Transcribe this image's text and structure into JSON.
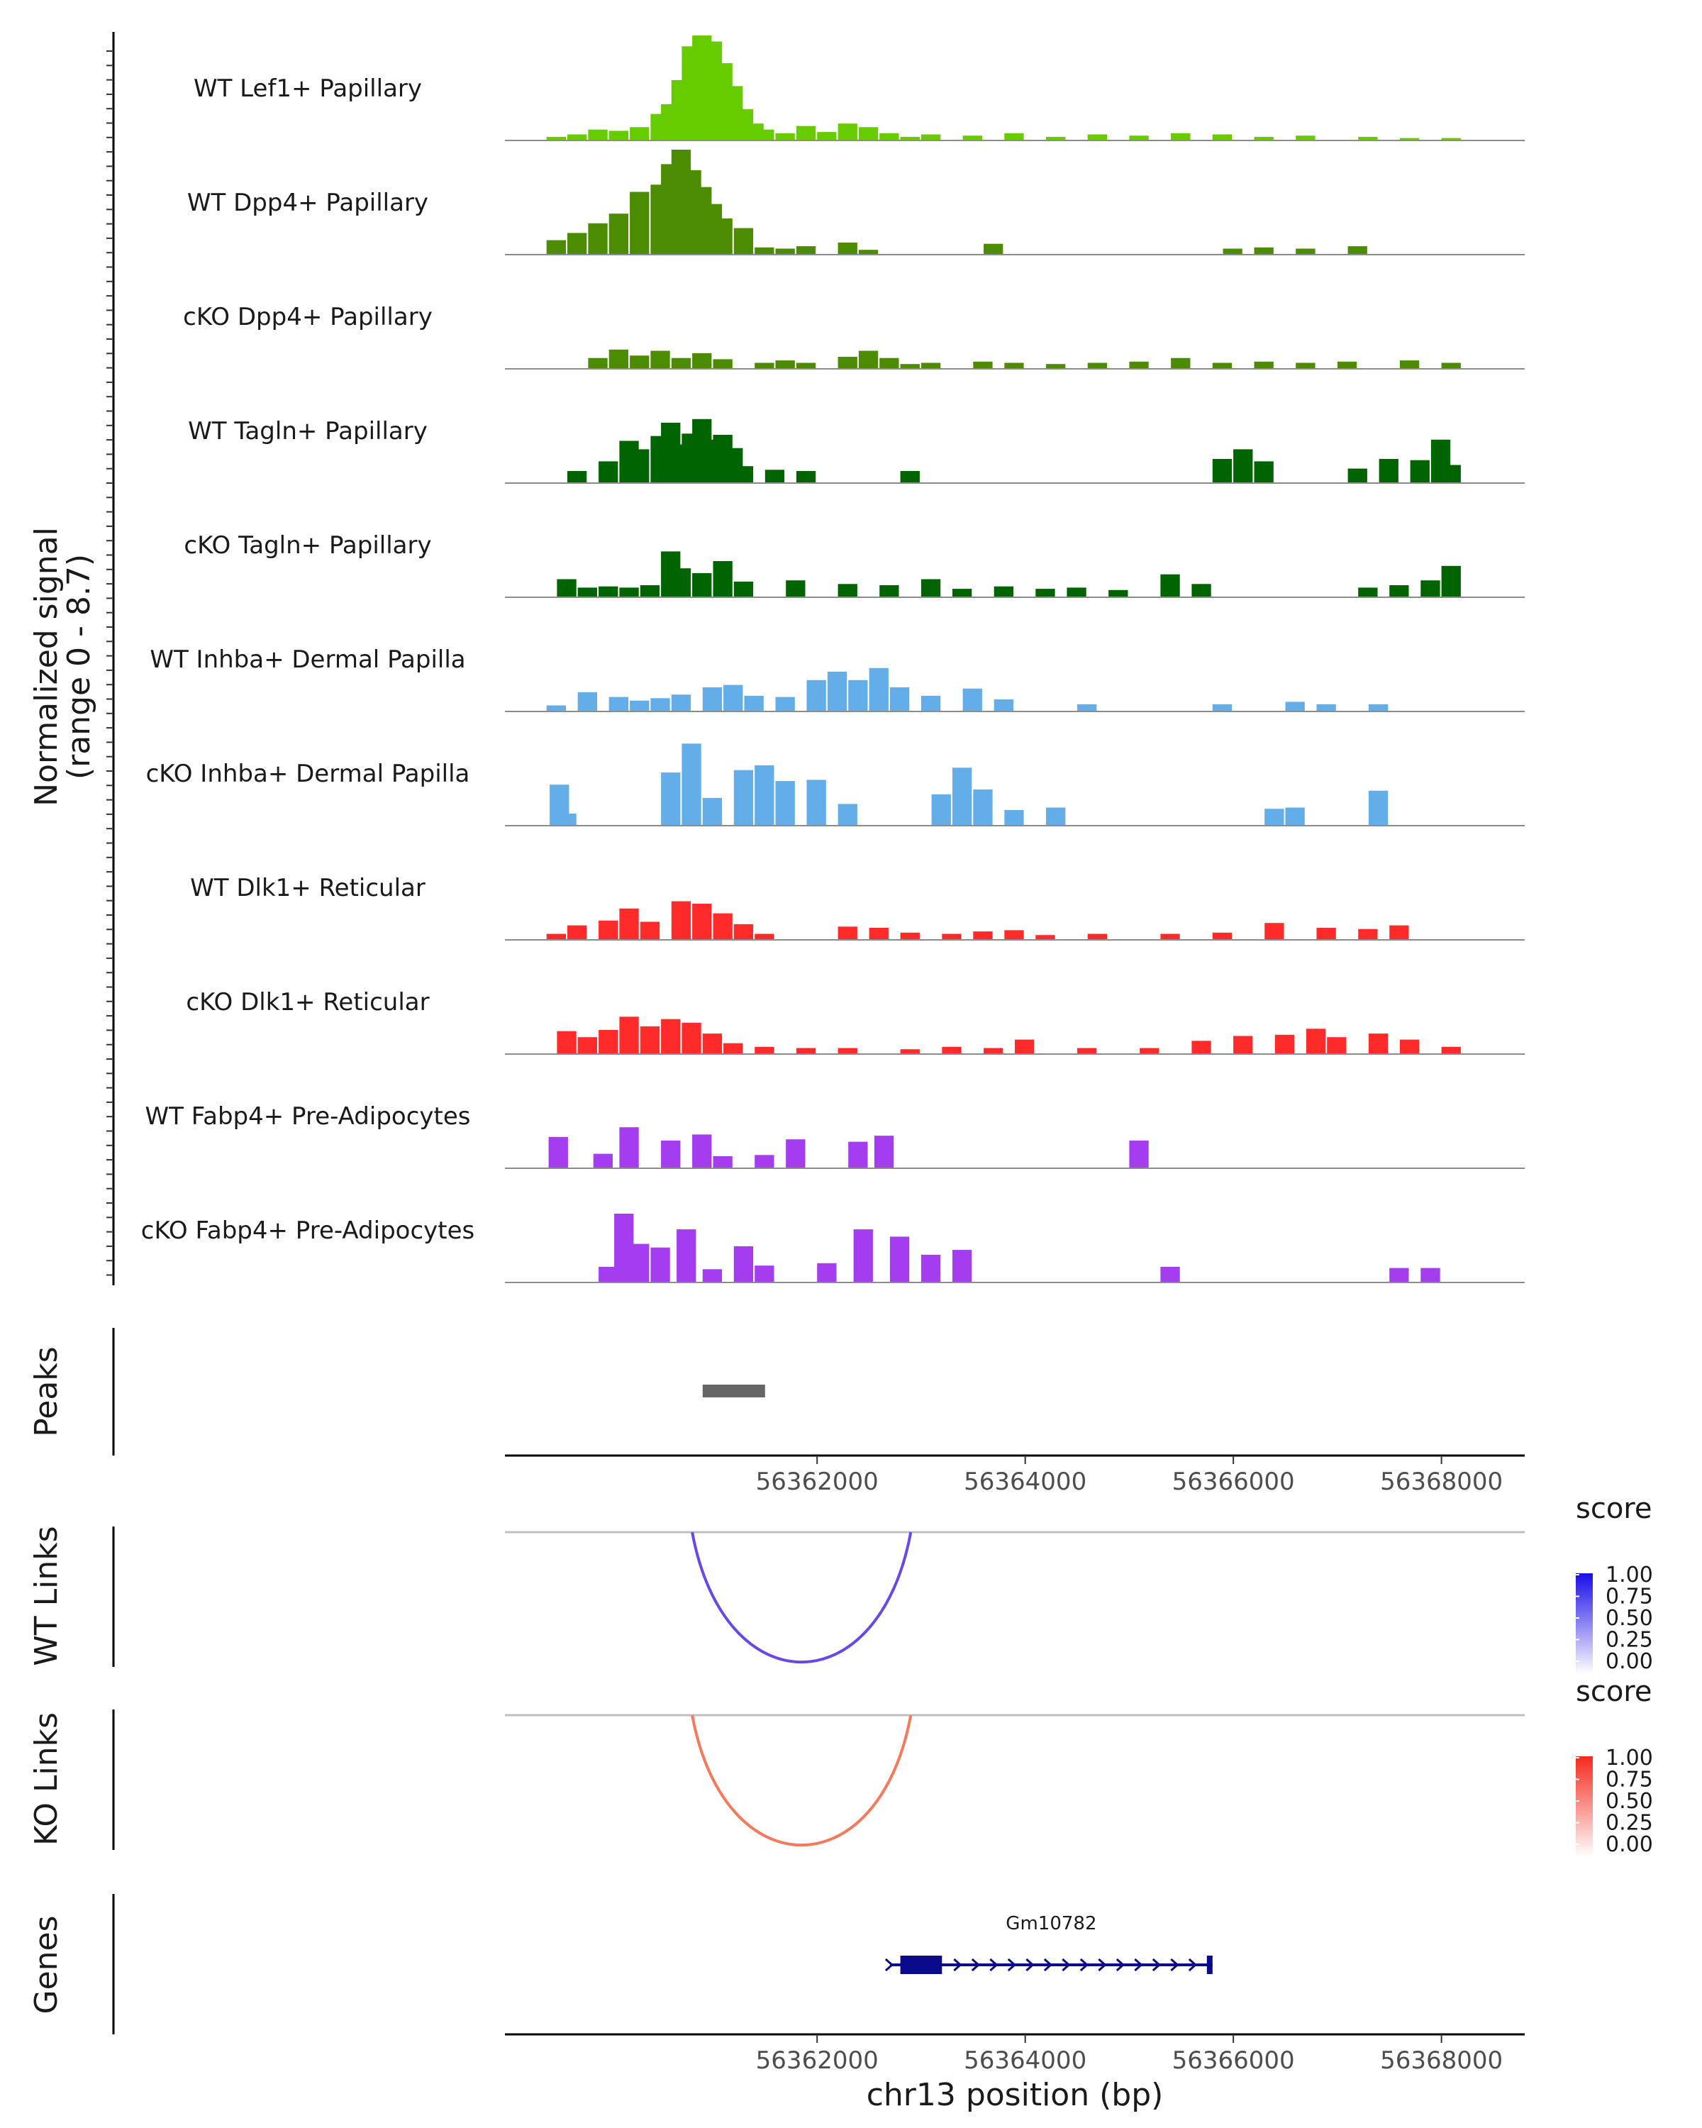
{
  "chart_data": {
    "type": "area",
    "title": "",
    "chromosome": "chr13",
    "xlabel": "chr13 position (bp)",
    "xlim": [
      56359000,
      56368800
    ],
    "xticks": [
      56362000,
      56364000,
      56366000,
      56368000
    ],
    "ylabel": "Normalized signal",
    "ylabel_range": "(range 0 - 8.7)",
    "ylim": [
      0,
      8.7
    ],
    "coverage_tracks": [
      {
        "name": "WT Lef1+ Papillary",
        "color": "#66CC00",
        "bins": [
          [
            56359400,
            0.3
          ],
          [
            56359600,
            0.5
          ],
          [
            56359800,
            0.9
          ],
          [
            56360000,
            0.8
          ],
          [
            56360200,
            1.1
          ],
          [
            56360400,
            2.2
          ],
          [
            56360500,
            3.0
          ],
          [
            56360600,
            5.0
          ],
          [
            56360700,
            7.8
          ],
          [
            56360800,
            8.7
          ],
          [
            56360900,
            8.2
          ],
          [
            56361000,
            6.4
          ],
          [
            56361100,
            4.5
          ],
          [
            56361200,
            2.6
          ],
          [
            56361300,
            1.4
          ],
          [
            56361400,
            0.9
          ],
          [
            56361600,
            0.6
          ],
          [
            56361800,
            1.2
          ],
          [
            56362000,
            0.7
          ],
          [
            56362200,
            1.4
          ],
          [
            56362400,
            1.1
          ],
          [
            56362600,
            0.6
          ],
          [
            56362800,
            0.3
          ],
          [
            56363000,
            0.5
          ],
          [
            56363400,
            0.4
          ],
          [
            56363800,
            0.6
          ],
          [
            56364200,
            0.3
          ],
          [
            56364600,
            0.5
          ],
          [
            56365000,
            0.4
          ],
          [
            56365400,
            0.6
          ],
          [
            56365800,
            0.5
          ],
          [
            56366200,
            0.3
          ],
          [
            56366600,
            0.4
          ],
          [
            56367200,
            0.3
          ],
          [
            56367600,
            0.2
          ],
          [
            56368000,
            0.2
          ]
        ]
      },
      {
        "name": "WT Dpp4+ Papillary",
        "color": "#4C8C00",
        "bins": [
          [
            56359400,
            1.2
          ],
          [
            56359600,
            1.8
          ],
          [
            56359800,
            2.6
          ],
          [
            56360000,
            3.4
          ],
          [
            56360200,
            5.2
          ],
          [
            56360400,
            5.8
          ],
          [
            56360500,
            7.5
          ],
          [
            56360600,
            8.7
          ],
          [
            56360700,
            7.0
          ],
          [
            56360800,
            5.6
          ],
          [
            56360900,
            4.2
          ],
          [
            56361000,
            3.0
          ],
          [
            56361200,
            2.2
          ],
          [
            56361400,
            0.6
          ],
          [
            56361600,
            0.5
          ],
          [
            56361800,
            0.7
          ],
          [
            56362200,
            1.0
          ],
          [
            56362400,
            0.4
          ],
          [
            56363600,
            0.9
          ],
          [
            56365900,
            0.5
          ],
          [
            56366200,
            0.6
          ],
          [
            56366600,
            0.5
          ],
          [
            56367100,
            0.7
          ]
        ]
      },
      {
        "name": "cKO Dpp4+ Papillary",
        "color": "#4C8C00",
        "bins": [
          [
            56359800,
            0.9
          ],
          [
            56360000,
            1.6
          ],
          [
            56360200,
            1.1
          ],
          [
            56360400,
            1.5
          ],
          [
            56360600,
            0.9
          ],
          [
            56360800,
            1.3
          ],
          [
            56361000,
            0.8
          ],
          [
            56361400,
            0.5
          ],
          [
            56361600,
            0.7
          ],
          [
            56361800,
            0.5
          ],
          [
            56362200,
            1.0
          ],
          [
            56362400,
            1.5
          ],
          [
            56362600,
            0.9
          ],
          [
            56362800,
            0.4
          ],
          [
            56363000,
            0.5
          ],
          [
            56363500,
            0.6
          ],
          [
            56363800,
            0.5
          ],
          [
            56364200,
            0.4
          ],
          [
            56364600,
            0.5
          ],
          [
            56365000,
            0.6
          ],
          [
            56365400,
            0.9
          ],
          [
            56365800,
            0.5
          ],
          [
            56366200,
            0.6
          ],
          [
            56366600,
            0.5
          ],
          [
            56367000,
            0.6
          ],
          [
            56367600,
            0.7
          ],
          [
            56368000,
            0.5
          ]
        ]
      },
      {
        "name": "WT Tagln+ Papillary",
        "color": "#006400",
        "bins": [
          [
            56359600,
            1.0
          ],
          [
            56359900,
            1.8
          ],
          [
            56360100,
            3.5
          ],
          [
            56360200,
            2.8
          ],
          [
            56360400,
            3.9
          ],
          [
            56360500,
            5.0
          ],
          [
            56360600,
            3.2
          ],
          [
            56360700,
            4.1
          ],
          [
            56360800,
            5.3
          ],
          [
            56360900,
            3.6
          ],
          [
            56361000,
            4.0
          ],
          [
            56361100,
            2.9
          ],
          [
            56361200,
            1.4
          ],
          [
            56361500,
            1.1
          ],
          [
            56361800,
            1.0
          ],
          [
            56362800,
            1.0
          ],
          [
            56365800,
            2.0
          ],
          [
            56366000,
            2.8
          ],
          [
            56366200,
            1.8
          ],
          [
            56367100,
            1.2
          ],
          [
            56367400,
            2.0
          ],
          [
            56367700,
            1.9
          ],
          [
            56367900,
            3.6
          ],
          [
            56368000,
            1.5
          ]
        ]
      },
      {
        "name": "cKO Tagln+ Papillary",
        "color": "#006400",
        "bins": [
          [
            56359500,
            1.5
          ],
          [
            56359700,
            0.8
          ],
          [
            56359900,
            0.9
          ],
          [
            56360100,
            0.8
          ],
          [
            56360300,
            1.0
          ],
          [
            56360500,
            3.8
          ],
          [
            56360600,
            2.4
          ],
          [
            56360800,
            2.0
          ],
          [
            56361000,
            3.0
          ],
          [
            56361200,
            1.3
          ],
          [
            56361700,
            1.4
          ],
          [
            56362200,
            1.1
          ],
          [
            56362600,
            1.0
          ],
          [
            56363000,
            1.5
          ],
          [
            56363300,
            0.7
          ],
          [
            56363700,
            0.9
          ],
          [
            56364100,
            0.7
          ],
          [
            56364400,
            0.8
          ],
          [
            56364800,
            0.6
          ],
          [
            56365300,
            1.9
          ],
          [
            56365600,
            1.1
          ],
          [
            56367200,
            0.8
          ],
          [
            56367500,
            1.0
          ],
          [
            56367800,
            1.4
          ],
          [
            56368000,
            2.6
          ]
        ]
      },
      {
        "name": "WT Inhba+ Dermal Papilla",
        "color": "#63AEE8",
        "bins": [
          [
            56359400,
            0.5
          ],
          [
            56359700,
            1.6
          ],
          [
            56360000,
            1.2
          ],
          [
            56360200,
            0.9
          ],
          [
            56360400,
            1.1
          ],
          [
            56360600,
            1.4
          ],
          [
            56360900,
            2.0
          ],
          [
            56361100,
            2.2
          ],
          [
            56361300,
            1.3
          ],
          [
            56361600,
            1.2
          ],
          [
            56361900,
            2.6
          ],
          [
            56362100,
            3.3
          ],
          [
            56362300,
            2.6
          ],
          [
            56362500,
            3.6
          ],
          [
            56362700,
            2.0
          ],
          [
            56363000,
            1.3
          ],
          [
            56363400,
            1.9
          ],
          [
            56363700,
            1.0
          ],
          [
            56364500,
            0.6
          ],
          [
            56365800,
            0.6
          ],
          [
            56366500,
            0.8
          ],
          [
            56366800,
            0.6
          ],
          [
            56367300,
            0.6
          ]
        ]
      },
      {
        "name": "cKO Inhba+ Dermal Papilla",
        "color": "#63AEE8",
        "bins": [
          [
            56359430,
            3.4
          ],
          [
            56359500,
            1.0
          ],
          [
            56360500,
            4.4
          ],
          [
            56360700,
            6.8
          ],
          [
            56360900,
            2.3
          ],
          [
            56361200,
            4.6
          ],
          [
            56361400,
            5.0
          ],
          [
            56361600,
            3.7
          ],
          [
            56361900,
            3.8
          ],
          [
            56362200,
            1.8
          ],
          [
            56363100,
            2.6
          ],
          [
            56363300,
            4.8
          ],
          [
            56363500,
            3.0
          ],
          [
            56363800,
            1.3
          ],
          [
            56364200,
            1.5
          ],
          [
            56366300,
            1.4
          ],
          [
            56366500,
            1.5
          ],
          [
            56367300,
            2.9
          ]
        ]
      },
      {
        "name": "WT Dlk1+ Reticular",
        "color": "#FF2A2A",
        "bins": [
          [
            56359400,
            0.5
          ],
          [
            56359600,
            1.2
          ],
          [
            56359900,
            1.6
          ],
          [
            56360100,
            2.6
          ],
          [
            56360300,
            1.5
          ],
          [
            56360600,
            3.2
          ],
          [
            56360800,
            3.0
          ],
          [
            56361000,
            2.2
          ],
          [
            56361200,
            1.3
          ],
          [
            56361400,
            0.5
          ],
          [
            56362200,
            1.1
          ],
          [
            56362500,
            1.0
          ],
          [
            56362800,
            0.6
          ],
          [
            56363200,
            0.5
          ],
          [
            56363500,
            0.7
          ],
          [
            56363800,
            0.8
          ],
          [
            56364100,
            0.4
          ],
          [
            56364600,
            0.5
          ],
          [
            56365300,
            0.5
          ],
          [
            56365800,
            0.6
          ],
          [
            56366300,
            1.4
          ],
          [
            56366800,
            1.0
          ],
          [
            56367200,
            0.9
          ],
          [
            56367500,
            1.2
          ]
        ]
      },
      {
        "name": "cKO Dlk1+ Reticular",
        "color": "#FF2A2A",
        "bins": [
          [
            56359500,
            1.9
          ],
          [
            56359700,
            1.4
          ],
          [
            56359900,
            2.0
          ],
          [
            56360100,
            3.1
          ],
          [
            56360300,
            2.3
          ],
          [
            56360500,
            2.9
          ],
          [
            56360700,
            2.6
          ],
          [
            56360900,
            1.7
          ],
          [
            56361100,
            0.9
          ],
          [
            56361400,
            0.6
          ],
          [
            56361800,
            0.5
          ],
          [
            56362200,
            0.5
          ],
          [
            56362800,
            0.4
          ],
          [
            56363200,
            0.6
          ],
          [
            56363600,
            0.5
          ],
          [
            56363900,
            1.2
          ],
          [
            56364500,
            0.5
          ],
          [
            56365100,
            0.5
          ],
          [
            56365600,
            1.1
          ],
          [
            56366000,
            1.5
          ],
          [
            56366400,
            1.6
          ],
          [
            56366700,
            2.1
          ],
          [
            56366900,
            1.4
          ],
          [
            56367300,
            1.7
          ],
          [
            56367600,
            1.2
          ],
          [
            56368000,
            0.6
          ]
        ]
      },
      {
        "name": "WT Fabp4+ Pre-Adipocytes",
        "color": "#A43CF0",
        "bins": [
          [
            56359420,
            2.6
          ],
          [
            56359850,
            1.2
          ],
          [
            56360100,
            3.4
          ],
          [
            56360500,
            2.3
          ],
          [
            56360800,
            2.8
          ],
          [
            56361000,
            1.0
          ],
          [
            56361400,
            1.1
          ],
          [
            56361700,
            2.4
          ],
          [
            56362300,
            2.2
          ],
          [
            56362550,
            2.7
          ],
          [
            56365000,
            2.3
          ]
        ]
      },
      {
        "name": "cKO Fabp4+ Pre-Adipocytes",
        "color": "#A43CF0",
        "bins": [
          [
            56359900,
            1.3
          ],
          [
            56360050,
            5.7
          ],
          [
            56360200,
            3.2
          ],
          [
            56360400,
            2.9
          ],
          [
            56360650,
            4.4
          ],
          [
            56360900,
            1.1
          ],
          [
            56361200,
            3.0
          ],
          [
            56361400,
            1.4
          ],
          [
            56362000,
            1.6
          ],
          [
            56362350,
            4.4
          ],
          [
            56362700,
            3.8
          ],
          [
            56363000,
            2.3
          ],
          [
            56363300,
            2.7
          ],
          [
            56365300,
            1.3
          ],
          [
            56367500,
            1.2
          ],
          [
            56367800,
            1.2
          ]
        ]
      }
    ],
    "peaks_track": {
      "label": "Peaks",
      "peaks": [
        [
          56360900,
          56361500
        ]
      ]
    },
    "link_tracks": [
      {
        "label": "WT Links",
        "color": "#6A48E8",
        "from": 56360800,
        "to": 56362900,
        "score": 0.72,
        "legend": {
          "title": "score",
          "ticks": [
            "1.00",
            "0.75",
            "0.50",
            "0.25",
            "0.00"
          ],
          "low": "#FFFFFF",
          "high": "#1A0DE8"
        }
      },
      {
        "label": "KO Links",
        "color": "#F57A5B",
        "from": 56360800,
        "to": 56362900,
        "score": 0.6,
        "legend": {
          "title": "score",
          "ticks": [
            "1.00",
            "0.75",
            "0.50",
            "0.25",
            "0.00"
          ],
          "low": "#FFFFFF",
          "high": "#F52A1E"
        }
      }
    ],
    "genes_track": {
      "label": "Genes",
      "genes": [
        {
          "name": "Gm10782",
          "start": 56362700,
          "end": 56365800,
          "strand": "+",
          "exon": [
            56362800,
            56363200
          ],
          "color": "#0A0A8C"
        }
      ]
    }
  }
}
